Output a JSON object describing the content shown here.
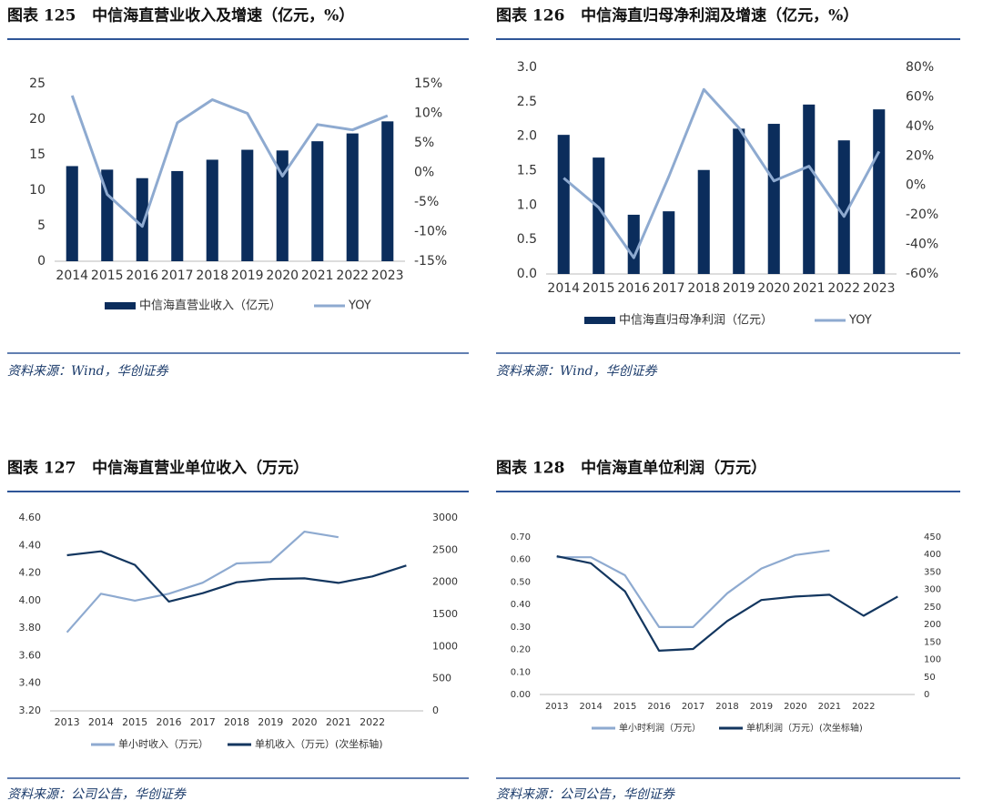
{
  "chart_data": [
    {
      "type": "bar",
      "title": "图表 125   中信海直营业收入及增速（亿元，%）",
      "source": "资料来源：Wind，华创证券",
      "categories": [
        "2014",
        "2015",
        "2016",
        "2017",
        "2018",
        "2019",
        "2020",
        "2021",
        "2022",
        "2023"
      ],
      "series": [
        {
          "name": "中信海直营业收入（亿元）",
          "type": "bar",
          "color": "#0b2d5c",
          "values": [
            13.4,
            12.9,
            11.7,
            12.7,
            14.3,
            15.7,
            15.6,
            16.9,
            18.0,
            19.7
          ]
        },
        {
          "name": "YOY",
          "type": "line",
          "axis": "y2",
          "color": "#8eaad0",
          "values": [
            13.0,
            -3.7,
            -9.1,
            8.4,
            12.3,
            10.0,
            -0.6,
            8.1,
            7.2,
            9.6
          ]
        }
      ],
      "ylim": [
        0,
        25
      ],
      "yticks": [
        0,
        5,
        10,
        15,
        20,
        25
      ],
      "y2lim": [
        -15,
        15
      ],
      "y2ticks": [
        {
          "value": -15,
          "label": "-15%"
        },
        {
          "value": -10,
          "label": "-10%"
        },
        {
          "value": -5,
          "label": "-5%"
        },
        {
          "value": 0,
          "label": "0%"
        },
        {
          "value": 5,
          "label": "5%"
        },
        {
          "value": 10,
          "label": "10%"
        },
        {
          "value": 15,
          "label": "15%"
        }
      ]
    },
    {
      "type": "bar",
      "title": "图表 126   中信海直归母净利润及增速（亿元，%）",
      "source": "资料来源：Wind，华创证券",
      "categories": [
        "2014",
        "2015",
        "2016",
        "2017",
        "2018",
        "2019",
        "2020",
        "2021",
        "2022",
        "2023"
      ],
      "series": [
        {
          "name": "中信海直归母净利润（亿元）",
          "type": "bar",
          "color": "#0b2d5c",
          "values": [
            2.02,
            1.69,
            0.86,
            0.91,
            1.51,
            2.11,
            2.18,
            2.46,
            1.94,
            2.39
          ]
        },
        {
          "name": "YOY",
          "type": "line",
          "axis": "y2",
          "color": "#8eaad0",
          "values": [
            5,
            -15,
            -49,
            6,
            65,
            39,
            3,
            13,
            -21,
            23
          ]
        }
      ],
      "ylim": [
        0,
        3
      ],
      "yticks": [
        {
          "value": 0,
          "label": "0.0"
        },
        0.5,
        {
          "value": 1,
          "label": "1.0"
        },
        1.5,
        {
          "value": 2,
          "label": "2.0"
        },
        2.5,
        {
          "value": 3,
          "label": "3.0"
        }
      ],
      "y2lim": [
        -60,
        80
      ],
      "y2ticks": [
        {
          "value": -60,
          "label": "-60%"
        },
        {
          "value": -40,
          "label": "-40%"
        },
        {
          "value": -20,
          "label": "-20%"
        },
        {
          "value": 0,
          "label": "0%"
        },
        {
          "value": 20,
          "label": "20%"
        },
        {
          "value": 40,
          "label": "40%"
        },
        {
          "value": 60,
          "label": "60%"
        },
        {
          "value": 80,
          "label": "80%"
        }
      ]
    },
    {
      "type": "line",
      "title": "图表 127   中信海直营业单位收入（万元）",
      "source": "资料来源：公司公告，华创证券",
      "categories": [
        "2013",
        "2014",
        "2015",
        "2016",
        "2017",
        "2018",
        "2019",
        "2020",
        "2021",
        "2022",
        null
      ],
      "series": [
        {
          "name": "单小时收入（万元）",
          "color": "#8eaad0",
          "values": [
            3.77,
            4.05,
            4.0,
            4.05,
            4.13,
            4.27,
            4.28,
            4.5,
            4.46,
            null,
            null
          ]
        },
        {
          "name": "单机收入（万元）(次坐标轴)",
          "axis": "y2",
          "color": "#13365f",
          "values": [
            2420,
            2480,
            2270,
            1700,
            1830,
            2000,
            2050,
            2060,
            1990,
            2090,
            2260
          ]
        }
      ],
      "ylim": [
        3.2,
        4.6
      ],
      "yticks": [
        {
          "value": 3.2,
          "label": "3.20"
        },
        {
          "value": 3.4,
          "label": "3.40"
        },
        {
          "value": 3.6,
          "label": "3.60"
        },
        {
          "value": 3.8,
          "label": "3.80"
        },
        {
          "value": 4,
          "label": "4.00"
        },
        {
          "value": 4.2,
          "label": "4.20"
        },
        {
          "value": 4.4,
          "label": "4.40"
        },
        {
          "value": 4.6,
          "label": "4.60"
        }
      ],
      "y2lim": [
        0,
        3000
      ],
      "y2ticks": [
        0,
        500,
        1000,
        1500,
        2000,
        2500,
        3000
      ]
    },
    {
      "type": "line",
      "title": "图表 128   中信海直单位利润（万元）",
      "source": "资料来源：公司公告，华创证券",
      "categories": [
        "2013",
        "2014",
        "2015",
        "2016",
        "2017",
        "2018",
        "2019",
        "2020",
        "2021",
        "2022",
        null
      ],
      "series": [
        {
          "name": "单小时利润（万元）",
          "color": "#8eaad0",
          "values": [
            0.61,
            0.61,
            0.53,
            0.3,
            0.3,
            0.45,
            0.56,
            0.62,
            0.64,
            null,
            null
          ]
        },
        {
          "name": "单机利润（万元）(次坐标轴)",
          "axis": "y2",
          "color": "#13365f",
          "values": [
            395,
            375,
            295,
            125,
            130,
            210,
            270,
            280,
            285,
            225,
            280
          ]
        }
      ],
      "ylim": [
        0,
        0.7
      ],
      "yticks": [
        {
          "value": 0,
          "label": "0.00"
        },
        {
          "value": 0.1,
          "label": "0.10"
        },
        {
          "value": 0.2,
          "label": "0.20"
        },
        {
          "value": 0.3,
          "label": "0.30"
        },
        {
          "value": 0.4,
          "label": "0.40"
        },
        {
          "value": 0.5,
          "label": "0.50"
        },
        {
          "value": 0.6,
          "label": "0.60"
        },
        {
          "value": 0.7,
          "label": "0.70"
        }
      ],
      "y2lim": [
        0,
        450
      ],
      "y2ticks": [
        0,
        50,
        100,
        150,
        200,
        250,
        300,
        350,
        400,
        450
      ]
    }
  ]
}
